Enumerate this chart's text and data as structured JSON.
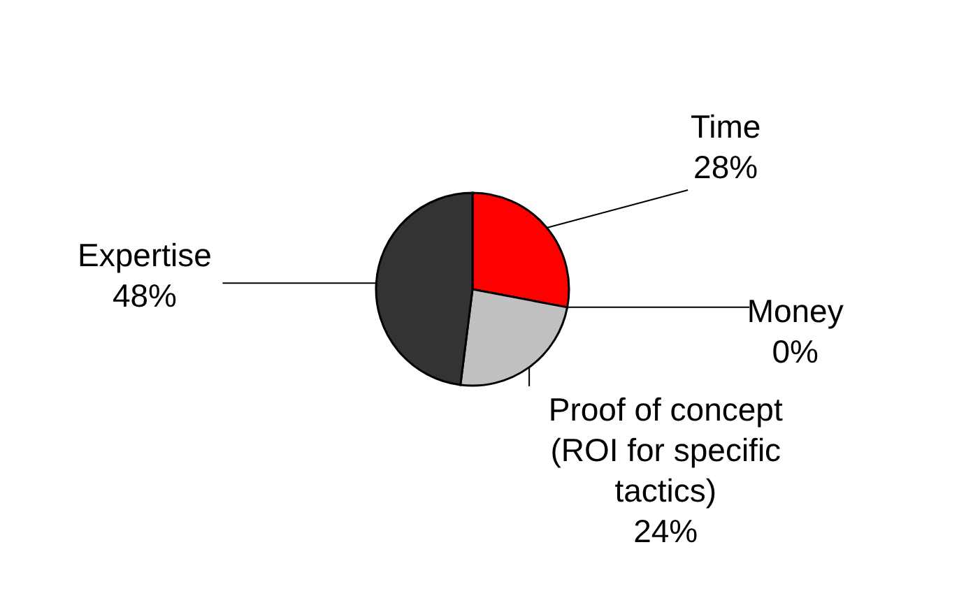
{
  "chart_data": {
    "type": "pie",
    "categories": [
      "Time",
      "Money",
      "Proof of concept (ROI for specific tactics)",
      "Expertise"
    ],
    "values": [
      28,
      0,
      24,
      48
    ],
    "colors": [
      "#ff0000",
      "#ffffff",
      "#c0c0c0",
      "#333333"
    ],
    "value_labels": [
      "28%",
      "0%",
      "24%",
      "48%"
    ],
    "legend": false
  }
}
